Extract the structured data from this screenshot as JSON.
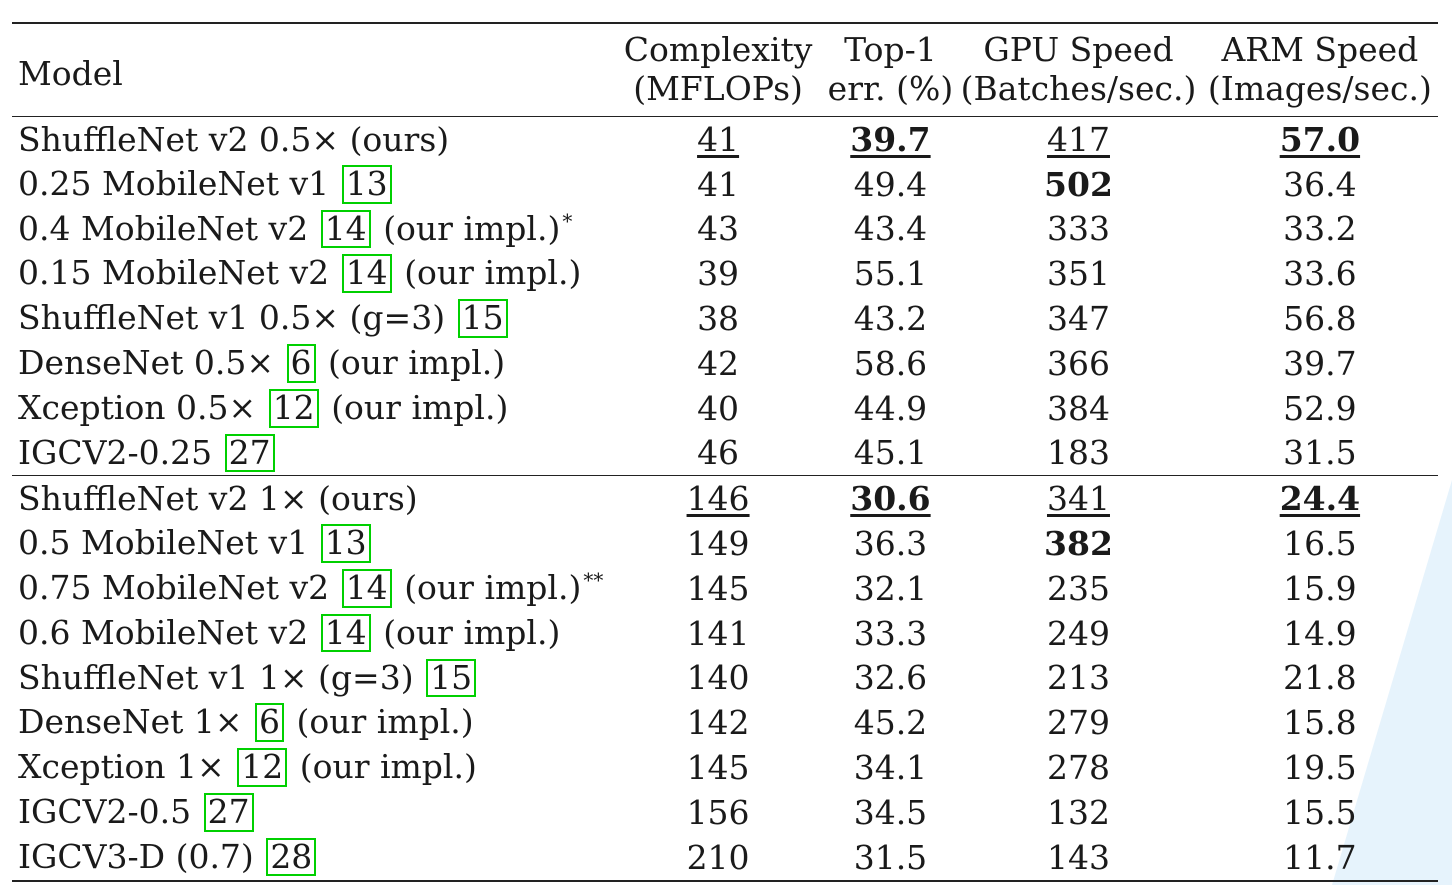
{
  "header": {
    "model": "Model",
    "complexity": [
      "Complexity",
      "(MFLOPs)"
    ],
    "top1": [
      "Top-1",
      "err. (%)"
    ],
    "gpu": [
      "GPU Speed",
      "(Batches/sec.)"
    ],
    "arm": [
      "ARM Speed",
      "(Images/sec.)"
    ]
  },
  "groups": [
    {
      "rows": [
        {
          "name": "ShuffleNet v2 0.5×",
          "cite": "",
          "suffix": "(ours)",
          "note": "",
          "mflops": "41",
          "top1": "39.7",
          "gpu": "417",
          "arm": "57.0",
          "bold": [
            "top1",
            "arm"
          ],
          "underline": [
            "mflops",
            "top1",
            "gpu",
            "arm"
          ]
        },
        {
          "name": "0.25 MobileNet v1",
          "cite": "13",
          "suffix": "",
          "note": "",
          "mflops": "41",
          "top1": "49.4",
          "gpu": "502",
          "arm": "36.4",
          "bold": [
            "gpu"
          ],
          "underline": []
        },
        {
          "name": "0.4 MobileNet v2",
          "cite": "14",
          "suffix": "(our impl.)",
          "note": "*",
          "mflops": "43",
          "top1": "43.4",
          "gpu": "333",
          "arm": "33.2",
          "bold": [],
          "underline": []
        },
        {
          "name": "0.15 MobileNet v2",
          "cite": "14",
          "suffix": "(our impl.)",
          "note": "",
          "mflops": "39",
          "top1": "55.1",
          "gpu": "351",
          "arm": "33.6",
          "bold": [],
          "underline": []
        },
        {
          "name": "ShuffleNet v1 0.5× (g=3)",
          "cite": "15",
          "suffix": "",
          "note": "",
          "mflops": "38",
          "top1": "43.2",
          "gpu": "347",
          "arm": "56.8",
          "bold": [],
          "underline": []
        },
        {
          "name": "DenseNet 0.5×",
          "cite": "6",
          "suffix": "(our impl.)",
          "note": "",
          "mflops": "42",
          "top1": "58.6",
          "gpu": "366",
          "arm": "39.7",
          "bold": [],
          "underline": []
        },
        {
          "name": "Xception 0.5×",
          "cite": "12",
          "suffix": "(our impl.)",
          "note": "",
          "mflops": "40",
          "top1": "44.9",
          "gpu": "384",
          "arm": "52.9",
          "bold": [],
          "underline": []
        },
        {
          "name": "IGCV2-0.25",
          "cite": "27",
          "suffix": "",
          "note": "",
          "mflops": "46",
          "top1": "45.1",
          "gpu": "183",
          "arm": "31.5",
          "bold": [],
          "underline": []
        }
      ]
    },
    {
      "rows": [
        {
          "name": "ShuffleNet v2 1×",
          "cite": "",
          "suffix": "(ours)",
          "note": "",
          "mflops": "146",
          "top1": "30.6",
          "gpu": "341",
          "arm": "24.4",
          "bold": [
            "top1",
            "arm"
          ],
          "underline": [
            "mflops",
            "top1",
            "gpu",
            "arm"
          ]
        },
        {
          "name": "0.5 MobileNet v1",
          "cite": "13",
          "suffix": "",
          "note": "",
          "mflops": "149",
          "top1": "36.3",
          "gpu": "382",
          "arm": "16.5",
          "bold": [
            "gpu"
          ],
          "underline": []
        },
        {
          "name": "0.75 MobileNet v2",
          "cite": "14",
          "suffix": "(our impl.)",
          "note": "**",
          "mflops": "145",
          "top1": "32.1",
          "gpu": "235",
          "arm": "15.9",
          "bold": [],
          "underline": []
        },
        {
          "name": "0.6 MobileNet v2",
          "cite": "14",
          "suffix": "(our impl.)",
          "note": "",
          "mflops": "141",
          "top1": "33.3",
          "gpu": "249",
          "arm": "14.9",
          "bold": [],
          "underline": []
        },
        {
          "name": "ShuffleNet v1 1× (g=3)",
          "cite": "15",
          "suffix": "",
          "note": "",
          "mflops": "140",
          "top1": "32.6",
          "gpu": "213",
          "arm": "21.8",
          "bold": [],
          "underline": []
        },
        {
          "name": "DenseNet 1×",
          "cite": "6",
          "suffix": "(our impl.)",
          "note": "",
          "mflops": "142",
          "top1": "45.2",
          "gpu": "279",
          "arm": "15.8",
          "bold": [],
          "underline": []
        },
        {
          "name": "Xception 1×",
          "cite": "12",
          "suffix": "(our impl.)",
          "note": "",
          "mflops": "145",
          "top1": "34.1",
          "gpu": "278",
          "arm": "19.5",
          "bold": [],
          "underline": []
        },
        {
          "name": "IGCV2-0.5",
          "cite": "27",
          "suffix": "",
          "note": "",
          "mflops": "156",
          "top1": "34.5",
          "gpu": "132",
          "arm": "15.5",
          "bold": [],
          "underline": []
        },
        {
          "name": "IGCV3-D (0.7)",
          "cite": "28",
          "suffix": "",
          "note": "",
          "mflops": "210",
          "top1": "31.5",
          "gpu": "143",
          "arm": "11.7",
          "bold": [],
          "underline": []
        }
      ]
    }
  ],
  "colors": {
    "cite_border": "#00d000",
    "text": "#1a1a1a",
    "deco": "#e6f3fc"
  }
}
